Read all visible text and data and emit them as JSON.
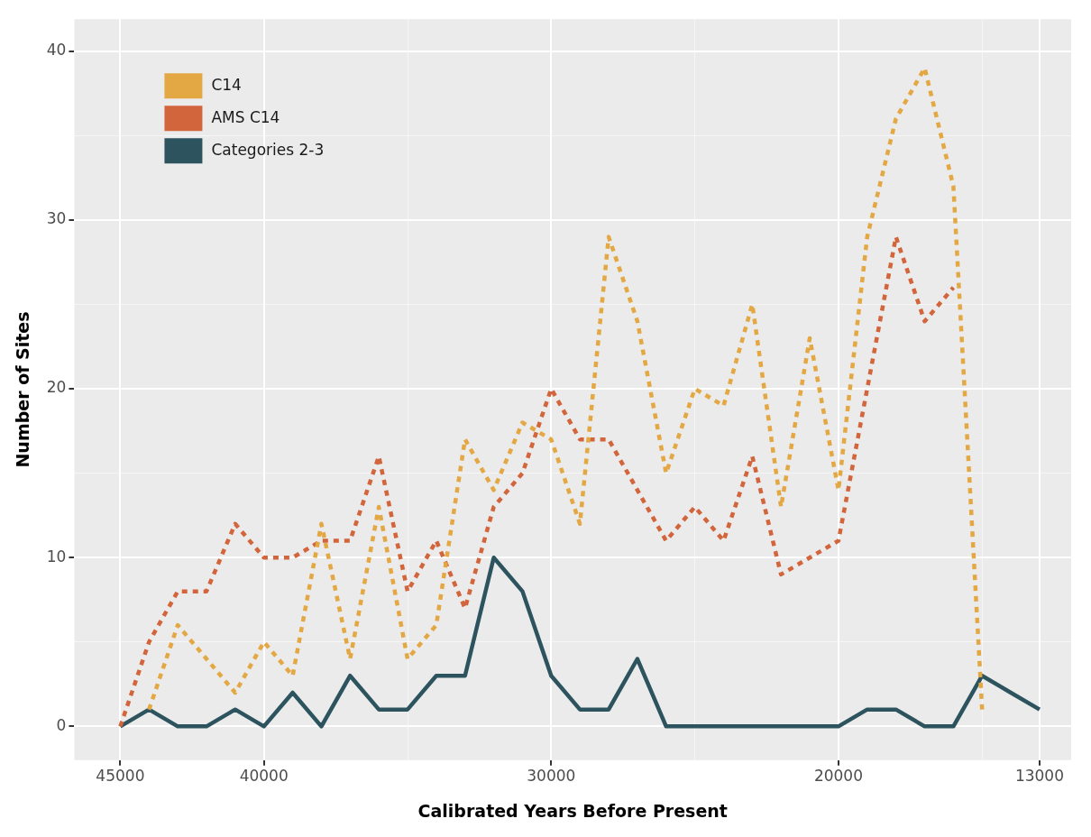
{
  "chart_data": {
    "type": "line",
    "xlabel": "Calibrated Years Before Present",
    "ylabel": "Number of Sites",
    "x": [
      45000,
      44000,
      43000,
      42000,
      41000,
      40000,
      39000,
      38000,
      37000,
      36000,
      35000,
      34000,
      33000,
      32000,
      31000,
      30000,
      29000,
      28000,
      27000,
      26000,
      25000,
      24000,
      23000,
      22000,
      21000,
      20000,
      19000,
      18000,
      17000,
      16000,
      15000,
      14000,
      13000
    ],
    "series": [
      {
        "name": "C14",
        "color": "#e3a843",
        "line_style": "dotted",
        "values": [
          null,
          1,
          6,
          4,
          2,
          5,
          3,
          12,
          4,
          13,
          4,
          6,
          17,
          14,
          18,
          17,
          12,
          29,
          24,
          15,
          20,
          19,
          25,
          13,
          23,
          14,
          29,
          36,
          39,
          32,
          1,
          null,
          null
        ]
      },
      {
        "name": "AMS C14",
        "color": "#d2653b",
        "line_style": "dotted",
        "values": [
          0,
          5,
          8,
          8,
          12,
          10,
          10,
          11,
          11,
          16,
          8,
          11,
          7,
          13,
          15,
          20,
          17,
          17,
          14,
          11,
          13,
          11,
          16,
          9,
          10,
          11,
          20,
          29,
          24,
          26,
          null,
          null,
          null
        ]
      },
      {
        "name": "Categories 2-3",
        "color": "#2d545e",
        "line_style": "solid",
        "values": [
          0,
          1,
          0,
          0,
          1,
          0,
          2,
          0,
          3,
          1,
          1,
          3,
          3,
          10,
          8,
          3,
          1,
          1,
          4,
          0,
          0,
          0,
          0,
          0,
          0,
          0,
          1,
          1,
          0,
          0,
          3,
          2,
          1
        ]
      }
    ],
    "xlim": [
      46600,
      11900
    ],
    "xticks": [
      45000,
      40000,
      {
        "value": 35000,
        "label": null
      },
      30000,
      {
        "value": 25000,
        "label": null
      },
      20000,
      {
        "value": 15000,
        "label": null
      },
      13000
    ],
    "ylim": [
      -2,
      41.9
    ],
    "yticks": [
      0,
      {
        "value": 5,
        "label": null
      },
      10,
      {
        "value": 15,
        "label": null
      },
      20,
      {
        "value": 25,
        "label": null
      },
      30,
      {
        "value": 35,
        "label": null
      },
      40
    ],
    "grid": true,
    "legend": "top left",
    "marker": "none"
  }
}
